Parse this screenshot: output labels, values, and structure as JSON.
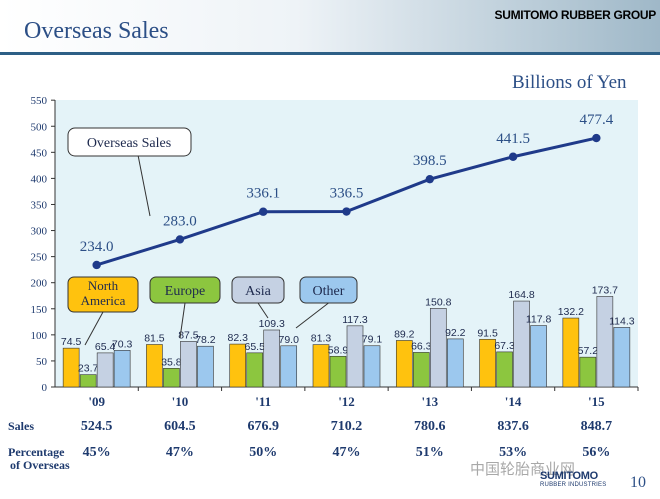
{
  "header": {
    "title": "Overseas Sales",
    "company": "SUMITOMO RUBBER GROUP",
    "unit": "Billions of Yen"
  },
  "colors": {
    "north_america": "#ffc20e",
    "europe": "#8cc63f",
    "asia": "#c5d1e3",
    "other": "#9cc8ee",
    "line": "#1f3a8a",
    "plot_bg": "#e4f3f8"
  },
  "chart_data": {
    "type": "bar",
    "title": "Overseas Sales",
    "unit": "Billions of Yen",
    "categories": [
      "'09",
      "'10",
      "'11",
      "'12",
      "'13",
      "'14",
      "'15"
    ],
    "ylim": [
      0,
      550
    ],
    "yticks": [
      0,
      50,
      100,
      150,
      200,
      250,
      300,
      350,
      400,
      450,
      500,
      550
    ],
    "grid": false,
    "series": [
      {
        "name": "North America",
        "legend": "North\nAmerica",
        "values": [
          74.5,
          81.5,
          82.3,
          81.3,
          89.2,
          91.5,
          132.2
        ]
      },
      {
        "name": "Europe",
        "values": [
          23.7,
          35.8,
          65.5,
          58.9,
          66.3,
          67.3,
          57.2
        ]
      },
      {
        "name": "Asia",
        "values": [
          65.4,
          87.5,
          109.3,
          117.3,
          150.8,
          164.8,
          173.7
        ]
      },
      {
        "name": "Other",
        "values": [
          70.3,
          78.2,
          79.0,
          79.1,
          92.2,
          117.8,
          114.3
        ]
      }
    ],
    "line_series": {
      "name": "Overseas Sales",
      "type": "line",
      "values": [
        234.0,
        283.0,
        336.1,
        336.5,
        398.5,
        441.5,
        477.4
      ]
    }
  },
  "table": {
    "sales_label": "Sales",
    "pct_label_line1": "Percentage",
    "pct_label_line2": "of Overseas",
    "sales": [
      "524.5",
      "604.5",
      "676.9",
      "710.2",
      "780.6",
      "837.6",
      "848.7"
    ],
    "percentage": [
      "45%",
      "47%",
      "50%",
      "47%",
      "51%",
      "53%",
      "56%"
    ]
  },
  "footer": {
    "page_number": "10",
    "watermark": "中国轮胎商业网",
    "logo_line1": "SUMITOMO",
    "logo_line2": "RUBBER INDUSTRIES"
  }
}
